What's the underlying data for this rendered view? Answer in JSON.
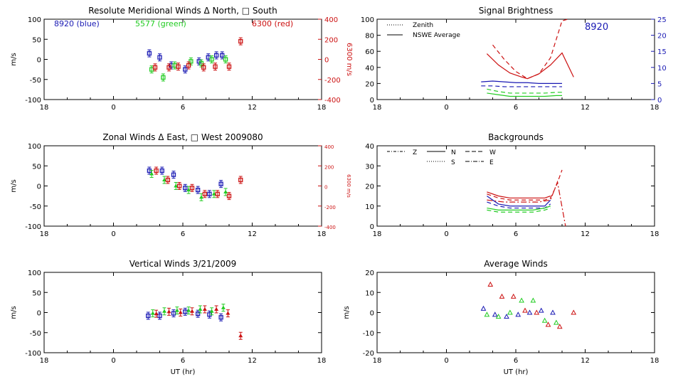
{
  "figure": {
    "xlabel": "UT (hr)",
    "xtick_labels": [
      "18",
      "0",
      "6",
      "12",
      "18"
    ]
  },
  "chart_data": [
    {
      "id": "meridional",
      "type": "scatter",
      "title": "Resolute Meridional Winds Δ North, □ South",
      "ylabel": "m/s",
      "ylim": [
        -100,
        100
      ],
      "yticks": [
        -100,
        -50,
        0,
        50,
        100
      ],
      "y2label": "6300 m/s",
      "y2lim": [
        -400,
        400
      ],
      "y2ticks": [
        -400,
        -200,
        0,
        200,
        400
      ],
      "legend_text": [
        {
          "text": "8920 (blue)",
          "color": "#1a1ab4"
        },
        {
          "text": "5577 (green)",
          "color": "#22cc22"
        },
        {
          "text": "6300 (red)",
          "color": "#cc1111"
        }
      ],
      "series": [
        {
          "name": "8920 (blue)",
          "color": "#1a1ab4",
          "marker": "square",
          "x": [
            3.1,
            4.0,
            5.0,
            6.2,
            7.4,
            8.2,
            8.9,
            9.4
          ],
          "y": [
            15,
            5,
            -15,
            -25,
            -5,
            5,
            10,
            10
          ]
        },
        {
          "name": "5577 (green)",
          "color": "#22cc22",
          "marker": "square",
          "x": [
            3.3,
            4.3,
            5.3,
            6.7,
            7.6,
            8.5,
            9.7
          ],
          "y": [
            -25,
            -45,
            -15,
            -5,
            -10,
            0,
            0
          ]
        },
        {
          "name": "6300 (red)",
          "color": "#cc1111",
          "marker": "square",
          "x": [
            3.6,
            4.8,
            5.6,
            6.5,
            7.8,
            8.8,
            10.0,
            11.0
          ],
          "y": [
            -20,
            -20,
            -18,
            -15,
            -20,
            -18,
            -18,
            45
          ]
        }
      ]
    },
    {
      "id": "brightness",
      "type": "line",
      "title": "Signal Brightness",
      "ylim": [
        0,
        100
      ],
      "yticks": [
        0,
        20,
        40,
        60,
        80,
        100
      ],
      "y2lim": [
        0,
        25
      ],
      "y2ticks": [
        0,
        5,
        10,
        15,
        20,
        25
      ],
      "annotation": "8920",
      "legend": [
        "Zenith",
        "NSWE Average"
      ],
      "series": [
        {
          "name": "red dashed",
          "color": "#cc1111",
          "dash": "6,4",
          "x": [
            4.0,
            5.0,
            6.0,
            7.0,
            8.0,
            9.0,
            10.0,
            10.5
          ],
          "y": [
            68,
            50,
            35,
            26,
            32,
            52,
            98,
            100
          ]
        },
        {
          "name": "red solid",
          "color": "#cc1111",
          "dash": "",
          "x": [
            3.5,
            4.5,
            5.5,
            6.5,
            7.0,
            8.0,
            9.0,
            10.0,
            11.0
          ],
          "y": [
            57,
            43,
            33,
            28,
            26,
            32,
            43,
            58,
            28
          ]
        },
        {
          "name": "blue solid",
          "color": "#1a1ab4",
          "dash": "",
          "x": [
            3.0,
            4.0,
            5.0,
            6.0,
            7.0,
            8.0,
            9.0,
            10.0
          ],
          "y": [
            22,
            23,
            22,
            21,
            21,
            20,
            20,
            20
          ]
        },
        {
          "name": "blue dashed",
          "color": "#1a1ab4",
          "dash": "6,4",
          "x": [
            3.0,
            4.0,
            5.0,
            6.0,
            7.0,
            8.0,
            9.0,
            10.0
          ],
          "y": [
            17,
            17,
            16,
            16,
            16,
            16,
            16,
            16
          ]
        },
        {
          "name": "green dashed",
          "color": "#22cc22",
          "dash": "6,4",
          "x": [
            3.5,
            4.5,
            5.5,
            6.5,
            7.5,
            8.5,
            9.5,
            10.0
          ],
          "y": [
            13,
            10,
            8,
            8,
            8,
            8,
            9,
            9
          ]
        },
        {
          "name": "green solid",
          "color": "#22cc22",
          "dash": "",
          "x": [
            3.5,
            4.5,
            5.5,
            6.5,
            7.5,
            8.5,
            9.5,
            10.0
          ],
          "y": [
            8,
            6,
            4,
            4,
            4,
            4,
            5,
            5
          ]
        }
      ]
    },
    {
      "id": "zonal",
      "type": "scatter",
      "title": "Zonal Winds Δ East, □ West 2009080",
      "ylabel": "m/s",
      "ylim": [
        -100,
        100
      ],
      "yticks": [
        -100,
        -50,
        0,
        50,
        100
      ],
      "y2label": "6300 m/s",
      "y2lim": [
        -400,
        400
      ],
      "y2ticks": [
        -400,
        -200,
        0,
        200,
        400
      ],
      "series": [
        {
          "name": "8920 (blue)",
          "color": "#1a1ab4",
          "marker": "square",
          "x": [
            3.1,
            4.2,
            5.2,
            6.2,
            7.3,
            8.3,
            9.3
          ],
          "y": [
            38,
            38,
            28,
            -5,
            -10,
            -20,
            5
          ]
        },
        {
          "name": "5577 (green)",
          "color": "#22cc22",
          "marker": "triangle",
          "x": [
            3.3,
            4.4,
            5.4,
            6.5,
            7.6,
            8.7,
            9.7
          ],
          "y": [
            30,
            15,
            0,
            -10,
            -28,
            -20,
            -15
          ]
        },
        {
          "name": "6300 (red)",
          "color": "#cc1111",
          "marker": "square",
          "x": [
            3.7,
            4.7,
            5.7,
            6.8,
            7.9,
            9.0,
            10.0,
            11.0
          ],
          "y": [
            38,
            15,
            0,
            -5,
            -20,
            -20,
            -25,
            15
          ]
        }
      ]
    },
    {
      "id": "backgrounds",
      "type": "line",
      "title": "Backgrounds",
      "ylim": [
        0,
        40
      ],
      "yticks": [
        0,
        10,
        20,
        30,
        40
      ],
      "legend": [
        "Z",
        "N",
        "W",
        "S",
        "E"
      ],
      "series": [
        {
          "name": "red",
          "color": "#cc1111",
          "dash": "",
          "x": [
            3.5,
            4.5,
            5.5,
            6.5,
            7.5,
            8.5,
            9.0
          ],
          "y": [
            17,
            15,
            14,
            14,
            14,
            14,
            15
          ]
        },
        {
          "name": "red",
          "color": "#cc1111",
          "dash": "6,4",
          "x": [
            3.5,
            4.5,
            5.5,
            6.5,
            7.5,
            8.5,
            9.0,
            9.5,
            10.0
          ],
          "y": [
            16,
            14,
            13,
            13,
            13,
            13,
            14,
            20,
            28
          ]
        },
        {
          "name": "red",
          "color": "#cc1111",
          "dash": "8,3,2,3",
          "x": [
            3.5,
            5.0,
            6.5,
            8.0,
            9.0,
            9.6,
            10.3
          ],
          "y": [
            13,
            12,
            12,
            12,
            13,
            22,
            0
          ]
        },
        {
          "name": "blue",
          "color": "#1a1ab4",
          "dash": "",
          "x": [
            3.5,
            4.5,
            5.5,
            6.5,
            7.5,
            8.5,
            9.0
          ],
          "y": [
            15,
            11,
            10,
            10,
            10,
            10,
            13
          ]
        },
        {
          "name": "blue",
          "color": "#1a1ab4",
          "dash": "6,4",
          "x": [
            3.5,
            4.5,
            5.5,
            6.5,
            7.5,
            8.5,
            9.0
          ],
          "y": [
            12,
            10,
            9,
            9,
            9,
            9,
            11
          ]
        },
        {
          "name": "green",
          "color": "#22cc22",
          "dash": "",
          "x": [
            3.5,
            4.5,
            5.5,
            6.5,
            7.5,
            8.5,
            9.0
          ],
          "y": [
            9,
            8,
            8,
            8,
            8,
            9,
            10
          ]
        },
        {
          "name": "green",
          "color": "#22cc22",
          "dash": "6,4",
          "x": [
            3.5,
            4.5,
            5.5,
            6.5,
            7.5,
            8.5,
            9.0
          ],
          "y": [
            8,
            7,
            7,
            7,
            7,
            8,
            9
          ]
        }
      ]
    },
    {
      "id": "vertical",
      "type": "scatter",
      "title": "Vertical Winds 3/21/2009",
      "ylabel": "m/s",
      "ylim": [
        -100,
        100
      ],
      "yticks": [
        -100,
        -50,
        0,
        50,
        100
      ],
      "series": [
        {
          "name": "8920 (blue)",
          "color": "#1a1ab4",
          "marker": "square",
          "x": [
            3.0,
            4.0,
            5.2,
            6.2,
            7.3,
            8.3,
            9.3
          ],
          "y": [
            -8,
            -8,
            -2,
            2,
            -3,
            -5,
            -12
          ]
        },
        {
          "name": "5577 (green)",
          "color": "#22cc22",
          "marker": "triangle",
          "x": [
            3.4,
            4.4,
            5.5,
            6.5,
            7.5,
            8.5,
            9.5
          ],
          "y": [
            -2,
            3,
            5,
            5,
            8,
            3,
            12
          ]
        },
        {
          "name": "6300 (red)",
          "color": "#cc1111",
          "marker": "triangle",
          "x": [
            3.7,
            4.8,
            5.8,
            6.8,
            7.9,
            8.9,
            9.9,
            11.0
          ],
          "y": [
            -3,
            2,
            0,
            3,
            8,
            8,
            -2,
            -58
          ]
        }
      ]
    },
    {
      "id": "average",
      "type": "scatter",
      "title": "Average Winds",
      "ylabel": "m/s",
      "ylim": [
        -20,
        20
      ],
      "yticks": [
        -20,
        -10,
        0,
        10,
        20
      ],
      "series": [
        {
          "name": "8920 (blue)",
          "color": "#1a1ab4",
          "marker": "open-triangle",
          "x": [
            3.2,
            4.2,
            5.2,
            6.2,
            7.2,
            8.2,
            9.2
          ],
          "y": [
            2,
            -1,
            -2,
            -1,
            0,
            1,
            0
          ]
        },
        {
          "name": "5577 (green)",
          "color": "#22cc22",
          "marker": "open-triangle",
          "x": [
            3.5,
            4.5,
            5.5,
            6.5,
            7.5,
            8.5,
            9.5
          ],
          "y": [
            -1,
            -2,
            0,
            6,
            6,
            -4,
            -5
          ]
        },
        {
          "name": "6300 (red)",
          "color": "#cc1111",
          "marker": "open-triangle",
          "x": [
            3.8,
            4.8,
            5.8,
            6.8,
            7.8,
            8.8,
            9.8,
            11.0
          ],
          "y": [
            14,
            8,
            8,
            1,
            0,
            -6,
            -7,
            0
          ]
        }
      ]
    }
  ]
}
